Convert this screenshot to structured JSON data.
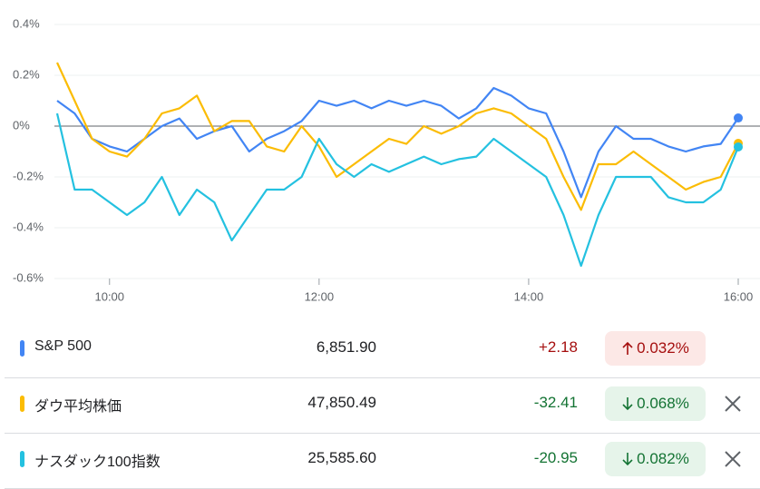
{
  "chart_data": {
    "type": "line",
    "categories": [
      null,
      null,
      null,
      "10:00",
      null,
      null,
      null,
      null,
      null,
      null,
      null,
      null,
      null,
      null,
      null,
      "12:00",
      null,
      null,
      null,
      null,
      null,
      null,
      null,
      null,
      null,
      null,
      null,
      "14:00",
      null,
      null,
      null,
      null,
      null,
      null,
      null,
      null,
      null,
      null,
      null,
      "16:00"
    ],
    "ylim": [
      -0.6,
      0.4
    ],
    "yticks": [
      {
        "value": 0.4,
        "label": "0.4%"
      },
      {
        "value": 0.2,
        "label": "0.2%"
      },
      {
        "value": 0,
        "label": "0%"
      },
      {
        "value": -0.2,
        "label": "-0.2%"
      },
      {
        "value": -0.4,
        "label": "-0.4%"
      },
      {
        "value": -0.6,
        "label": "-0.6%"
      }
    ],
    "grid": true,
    "series": [
      {
        "name": "S&P 500",
        "color": "#4285f4",
        "values": [
          0.1,
          0.05,
          -0.05,
          -0.08,
          -0.1,
          -0.05,
          0.0,
          0.03,
          -0.05,
          -0.02,
          0.0,
          -0.1,
          -0.05,
          -0.02,
          0.02,
          0.1,
          0.08,
          0.1,
          0.07,
          0.1,
          0.08,
          0.1,
          0.08,
          0.03,
          0.07,
          0.15,
          0.12,
          0.07,
          0.05,
          -0.1,
          -0.28,
          -0.1,
          0.0,
          -0.05,
          -0.05,
          -0.08,
          -0.1,
          -0.08,
          -0.07,
          0.032
        ]
      },
      {
        "name": "ダウ平均株価",
        "color": "#fbbc04",
        "values": [
          0.25,
          0.1,
          -0.05,
          -0.1,
          -0.12,
          -0.05,
          0.05,
          0.07,
          0.12,
          -0.02,
          0.02,
          0.02,
          -0.08,
          -0.1,
          0.0,
          -0.08,
          -0.2,
          -0.15,
          -0.1,
          -0.05,
          -0.07,
          0.0,
          -0.03,
          0.0,
          0.05,
          0.07,
          0.05,
          0.0,
          -0.05,
          -0.2,
          -0.33,
          -0.15,
          -0.15,
          -0.1,
          -0.15,
          -0.2,
          -0.25,
          -0.22,
          -0.2,
          -0.068
        ]
      },
      {
        "name": "ナスダック100指数",
        "color": "#24c1e0",
        "values": [
          0.05,
          -0.25,
          -0.25,
          -0.3,
          -0.35,
          -0.3,
          -0.2,
          -0.35,
          -0.25,
          -0.3,
          -0.45,
          -0.35,
          -0.25,
          -0.25,
          -0.2,
          -0.05,
          -0.15,
          -0.2,
          -0.15,
          -0.18,
          -0.15,
          -0.12,
          -0.15,
          -0.13,
          -0.12,
          -0.05,
          -0.1,
          -0.15,
          -0.2,
          -0.35,
          -0.55,
          -0.35,
          -0.2,
          -0.2,
          -0.2,
          -0.28,
          -0.3,
          -0.3,
          -0.25,
          -0.082
        ]
      }
    ]
  },
  "table": {
    "rows": [
      {
        "name": "S&P 500",
        "price": "6,851.90",
        "change": "+2.18",
        "percent": "0.032%"
      },
      {
        "name": "ダウ平均株価",
        "price": "47,850.49",
        "change": "-32.41",
        "percent": "0.068%"
      },
      {
        "name": "ナスダック100指数",
        "price": "25,585.60",
        "change": "-20.95",
        "percent": "0.082%"
      }
    ]
  }
}
